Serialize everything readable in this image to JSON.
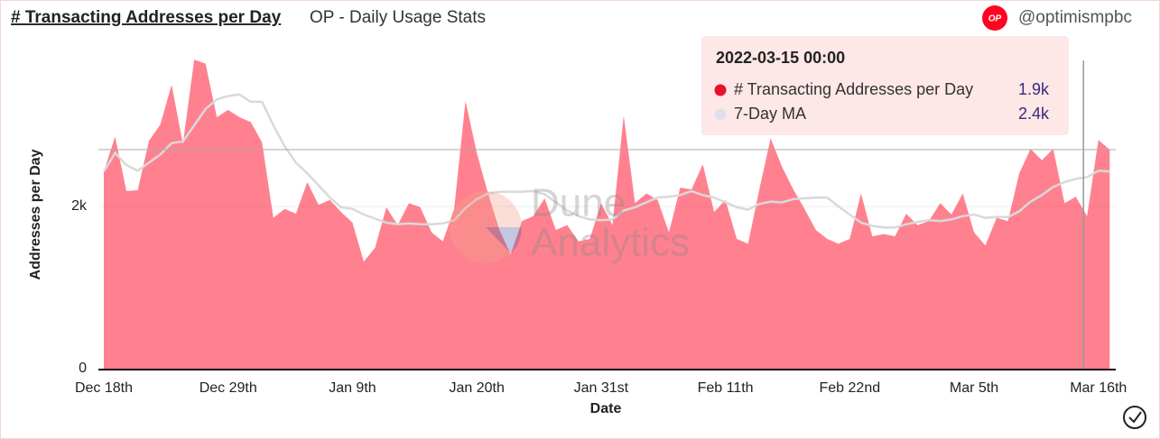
{
  "chart_data": {
    "type": "area",
    "title": "# Transacting Addresses per Day",
    "subtitle": "OP - Daily Usage Stats",
    "author": "@optimismpbc",
    "logo": "OP",
    "watermark": [
      "Dune",
      "Analytics"
    ],
    "xlabel": "Date",
    "ylabel": "Addresses per Day",
    "ylim": [
      0,
      4000
    ],
    "yticks": [
      0,
      {
        "value": 2000,
        "label": "2k"
      }
    ],
    "categories": [
      "Dec 18th",
      null,
      null,
      null,
      null,
      null,
      null,
      null,
      null,
      null,
      null,
      "Dec 29th",
      null,
      null,
      null,
      null,
      null,
      null,
      null,
      null,
      null,
      null,
      "Jan 9th",
      null,
      null,
      null,
      null,
      null,
      null,
      null,
      null,
      null,
      null,
      "Jan 20th",
      null,
      null,
      null,
      null,
      null,
      null,
      null,
      null,
      null,
      null,
      "Jan 31st",
      null,
      null,
      null,
      null,
      null,
      null,
      null,
      null,
      null,
      null,
      "Feb 11th",
      null,
      null,
      null,
      null,
      null,
      null,
      null,
      null,
      null,
      null,
      "Feb 22nd",
      null,
      null,
      null,
      null,
      null,
      null,
      null,
      null,
      null,
      null,
      "Mar 5th",
      null,
      null,
      null,
      null,
      null,
      null,
      null,
      null,
      null,
      null,
      "Mar 16th",
      null
    ],
    "series": [
      {
        "name": "# Transacting Addresses per Day",
        "color": "#ff0420",
        "values": [
          2430,
          2860,
          2190,
          2200,
          2810,
          3010,
          3500,
          2770,
          3810,
          3760,
          3100,
          3190,
          3100,
          3040,
          2790,
          1860,
          1970,
          1910,
          2300,
          2020,
          2080,
          1930,
          1800,
          1320,
          1490,
          1990,
          1770,
          2040,
          1990,
          1680,
          1570,
          1970,
          3300,
          2660,
          2160,
          1710,
          1410,
          1820,
          1880,
          2100,
          1710,
          1770,
          1570,
          1600,
          2040,
          1770,
          3120,
          2040,
          2160,
          2080,
          1680,
          2230,
          2210,
          2520,
          1930,
          2080,
          1600,
          1540,
          2210,
          2840,
          2490,
          2210,
          1970,
          1710,
          1600,
          1540,
          1600,
          2160,
          1630,
          1660,
          1630,
          1910,
          1770,
          1820,
          2040,
          1900,
          2160,
          1680,
          1520,
          1860,
          1820,
          2410,
          2710,
          2570,
          2710,
          2040,
          2120,
          1880,
          2820,
          2700
        ]
      },
      {
        "name": "7-Day MA",
        "color": "#d9d9d9",
        "values": [
          2430,
          2660,
          2510,
          2440,
          2540,
          2640,
          2780,
          2800,
          3000,
          3200,
          3320,
          3360,
          3380,
          3290,
          3290,
          3000,
          2740,
          2540,
          2410,
          2260,
          2110,
          1990,
          1970,
          1900,
          1850,
          1800,
          1780,
          1790,
          1780,
          1780,
          1790,
          1830,
          1980,
          2090,
          2160,
          2180,
          2180,
          2180,
          2190,
          2150,
          2050,
          1950,
          1880,
          1840,
          1830,
          1840,
          1950,
          1990,
          2050,
          2110,
          2120,
          2140,
          2190,
          2140,
          2110,
          2050,
          1990,
          1960,
          2030,
          2060,
          2050,
          2090,
          2100,
          2110,
          2110,
          2000,
          1900,
          1800,
          1760,
          1740,
          1740,
          1780,
          1810,
          1830,
          1820,
          1840,
          1880,
          1900,
          1860,
          1870,
          1870,
          1940,
          2060,
          2140,
          2240,
          2300,
          2340,
          2360,
          2440,
          2430
        ]
      }
    ],
    "tooltip": {
      "title": "2022-03-15 00:00",
      "index": 87,
      "value_labels": [
        "1.9k",
        "2.4k"
      ]
    }
  }
}
